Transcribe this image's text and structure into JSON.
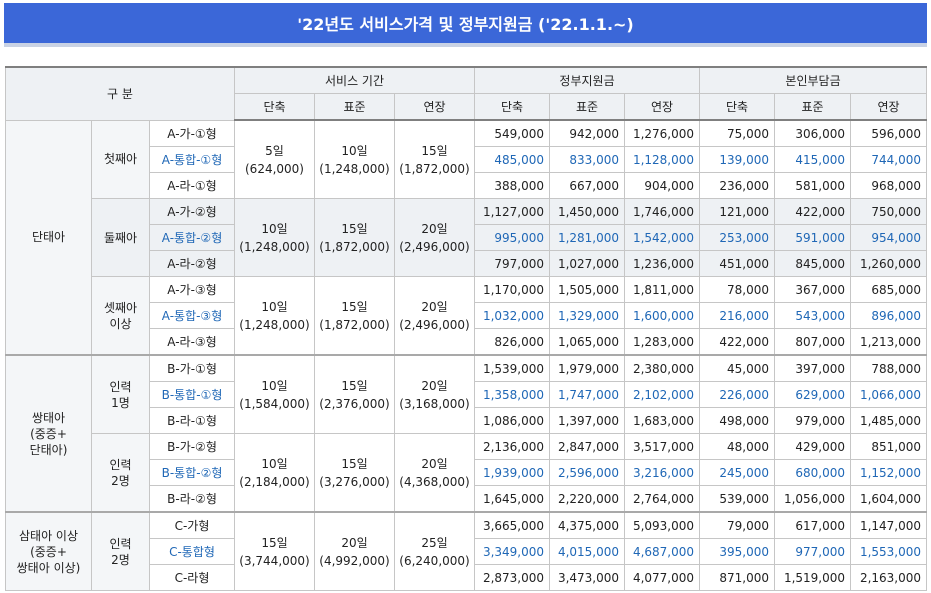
{
  "title": "'22년도  서비스가격 및 정부지원금 ('22.1.1.~)",
  "headers": {
    "category": "구 분",
    "service_period": "서비스 기간",
    "gov_support": "정부지원금",
    "self_pay": "본인부담금",
    "sub": [
      "단축",
      "표준",
      "연장",
      "단축",
      "표준",
      "연장",
      "단축",
      "표준",
      "연장"
    ]
  },
  "groups": [
    {
      "label": "단태아",
      "subgroups": [
        {
          "label": "첫째아",
          "service": [
            "5일\n(624,000)",
            "10일\n(1,248,000)",
            "15일\n(1,872,000)"
          ],
          "rows": [
            {
              "plan": "A-가-①형",
              "gov": [
                "549,000",
                "942,000",
                "1,276,000"
              ],
              "self": [
                "75,000",
                "306,000",
                "596,000"
              ],
              "highlight": false
            },
            {
              "plan": "A-통합-①형",
              "gov": [
                "485,000",
                "833,000",
                "1,128,000"
              ],
              "self": [
                "139,000",
                "415,000",
                "744,000"
              ],
              "highlight": true
            },
            {
              "plan": "A-라-①형",
              "gov": [
                "388,000",
                "667,000",
                "904,000"
              ],
              "self": [
                "236,000",
                "581,000",
                "968,000"
              ],
              "highlight": false
            }
          ]
        },
        {
          "label": "둘째아",
          "service": [
            "10일\n(1,248,000)",
            "15일\n(1,872,000)",
            "20일\n(2,496,000)"
          ],
          "rows": [
            {
              "plan": "A-가-②형",
              "gov": [
                "1,127,000",
                "1,450,000",
                "1,746,000"
              ],
              "self": [
                "121,000",
                "422,000",
                "750,000"
              ],
              "highlight": false
            },
            {
              "plan": "A-통합-②형",
              "gov": [
                "995,000",
                "1,281,000",
                "1,542,000"
              ],
              "self": [
                "253,000",
                "591,000",
                "954,000"
              ],
              "highlight": true
            },
            {
              "plan": "A-라-②형",
              "gov": [
                "797,000",
                "1,027,000",
                "1,236,000"
              ],
              "self": [
                "451,000",
                "845,000",
                "1,260,000"
              ],
              "highlight": false
            }
          ]
        },
        {
          "label": "셋째아\n이상",
          "service": [
            "10일\n(1,248,000)",
            "15일\n(1,872,000)",
            "20일\n(2,496,000)"
          ],
          "rows": [
            {
              "plan": "A-가-③형",
              "gov": [
                "1,170,000",
                "1,505,000",
                "1,811,000"
              ],
              "self": [
                "78,000",
                "367,000",
                "685,000"
              ],
              "highlight": false
            },
            {
              "plan": "A-통합-③형",
              "gov": [
                "1,032,000",
                "1,329,000",
                "1,600,000"
              ],
              "self": [
                "216,000",
                "543,000",
                "896,000"
              ],
              "highlight": true
            },
            {
              "plan": "A-라-③형",
              "gov": [
                "826,000",
                "1,065,000",
                "1,283,000"
              ],
              "self": [
                "422,000",
                "807,000",
                "1,213,000"
              ],
              "highlight": false
            }
          ]
        }
      ]
    },
    {
      "label": "쌍태아\n(중증+\n단태아)",
      "subgroups": [
        {
          "label": "인력\n1명",
          "service": [
            "10일\n(1,584,000)",
            "15일\n(2,376,000)",
            "20일\n(3,168,000)"
          ],
          "rows": [
            {
              "plan": "B-가-①형",
              "gov": [
                "1,539,000",
                "1,979,000",
                "2,380,000"
              ],
              "self": [
                "45,000",
                "397,000",
                "788,000"
              ],
              "highlight": false
            },
            {
              "plan": "B-통합-①형",
              "gov": [
                "1,358,000",
                "1,747,000",
                "2,102,000"
              ],
              "self": [
                "226,000",
                "629,000",
                "1,066,000"
              ],
              "highlight": true
            },
            {
              "plan": "B-라-①형",
              "gov": [
                "1,086,000",
                "1,397,000",
                "1,683,000"
              ],
              "self": [
                "498,000",
                "979,000",
                "1,485,000"
              ],
              "highlight": false
            }
          ]
        },
        {
          "label": "인력\n2명",
          "service": [
            "10일\n(2,184,000)",
            "15일\n(3,276,000)",
            "20일\n(4,368,000)"
          ],
          "rows": [
            {
              "plan": "B-가-②형",
              "gov": [
                "2,136,000",
                "2,847,000",
                "3,517,000"
              ],
              "self": [
                "48,000",
                "429,000",
                "851,000"
              ],
              "highlight": false
            },
            {
              "plan": "B-통합-②형",
              "gov": [
                "1,939,000",
                "2,596,000",
                "3,216,000"
              ],
              "self": [
                "245,000",
                "680,000",
                "1,152,000"
              ],
              "highlight": true
            },
            {
              "plan": "B-라-②형",
              "gov": [
                "1,645,000",
                "2,220,000",
                "2,764,000"
              ],
              "self": [
                "539,000",
                "1,056,000",
                "1,604,000"
              ],
              "highlight": false
            }
          ]
        }
      ]
    },
    {
      "label": "삼태아 이상\n(중증+\n쌍태아 이상)",
      "subgroups": [
        {
          "label": "인력\n2명",
          "service": [
            "15일\n(3,744,000)",
            "20일\n(4,992,000)",
            "25일\n(6,240,000)"
          ],
          "rows": [
            {
              "plan": "C-가형",
              "gov": [
                "3,665,000",
                "4,375,000",
                "5,093,000"
              ],
              "self": [
                "79,000",
                "617,000",
                "1,147,000"
              ],
              "highlight": false
            },
            {
              "plan": "C-통합형",
              "gov": [
                "3,349,000",
                "4,015,000",
                "4,687,000"
              ],
              "self": [
                "395,000",
                "977,000",
                "1,553,000"
              ],
              "highlight": true
            },
            {
              "plan": "C-라형",
              "gov": [
                "2,873,000",
                "3,473,000",
                "4,077,000"
              ],
              "self": [
                "871,000",
                "1,519,000",
                "2,163,000"
              ],
              "highlight": false
            }
          ]
        }
      ]
    }
  ]
}
